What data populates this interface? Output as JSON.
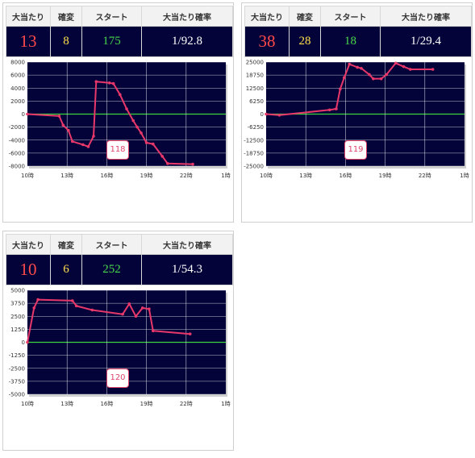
{
  "headers": {
    "big": "大当たり",
    "kakuhen": "確変",
    "start": "スタート",
    "prob": "大当たり確率"
  },
  "colors": {
    "plot_bg": "#03033a",
    "line": "#e8386a",
    "zero_line": "#3bd23b",
    "grid": "#ffffff",
    "big": "#ff4a4a",
    "kakuhen": "#ffe04a",
    "start": "#49d84a"
  },
  "cards": [
    {
      "machine": "118",
      "stats": {
        "big": "13",
        "kakuhen": "8",
        "start": "175",
        "prob": "1/92.8"
      }
    },
    {
      "machine": "119",
      "stats": {
        "big": "38",
        "kakuhen": "28",
        "start": "18",
        "prob": "1/29.4"
      }
    },
    {
      "machine": "120",
      "stats": {
        "big": "10",
        "kakuhen": "6",
        "start": "252",
        "prob": "1/54.3"
      }
    }
  ],
  "chart_data": [
    {
      "type": "line",
      "x_tick_labels": [
        "10時",
        "13時",
        "16時",
        "19時",
        "22時",
        "1時"
      ],
      "x_range_hours": [
        10,
        25
      ],
      "y_ticks": [
        8000,
        6000,
        4000,
        2000,
        0,
        -2000,
        -4000,
        -6000,
        -8000
      ],
      "ylim": [
        -8000,
        8000
      ],
      "grid": true,
      "series": [
        {
          "points": [
            [
              10.0,
              0
            ],
            [
              12.4,
              -300
            ],
            [
              12.7,
              -1700
            ],
            [
              13.1,
              -2500
            ],
            [
              13.4,
              -4200
            ],
            [
              14.2,
              -4700
            ],
            [
              14.6,
              -5000
            ],
            [
              15.0,
              -3400
            ],
            [
              15.2,
              5000
            ],
            [
              16.2,
              4800
            ],
            [
              16.5,
              4700
            ],
            [
              17.0,
              3000
            ],
            [
              17.5,
              800
            ],
            [
              18.0,
              -1000
            ],
            [
              18.3,
              -2000
            ],
            [
              18.6,
              -2900
            ],
            [
              19.0,
              -4400
            ],
            [
              19.5,
              -4600
            ],
            [
              20.2,
              -6500
            ],
            [
              20.6,
              -7600
            ],
            [
              22.5,
              -7700
            ]
          ]
        }
      ]
    },
    {
      "type": "line",
      "x_tick_labels": [
        "10時",
        "13時",
        "16時",
        "19時",
        "22時",
        "1時"
      ],
      "x_range_hours": [
        10,
        25
      ],
      "y_ticks": [
        25000,
        18750,
        12500,
        6250,
        0,
        -6250,
        -12500,
        -18750,
        -25000
      ],
      "ylim": [
        -25000,
        25000
      ],
      "grid": true,
      "series": [
        {
          "points": [
            [
              10.0,
              0
            ],
            [
              11.0,
              -500
            ],
            [
              14.8,
              2000
            ],
            [
              15.3,
              2500
            ],
            [
              15.6,
              12000
            ],
            [
              15.9,
              17500
            ],
            [
              16.3,
              24000
            ],
            [
              16.9,
              22500
            ],
            [
              17.2,
              22000
            ],
            [
              17.8,
              19000
            ],
            [
              18.1,
              17000
            ],
            [
              18.7,
              17000
            ],
            [
              19.1,
              19000
            ],
            [
              19.8,
              24500
            ],
            [
              20.4,
              22800
            ],
            [
              20.9,
              21500
            ],
            [
              22.6,
              21500
            ]
          ]
        }
      ]
    },
    {
      "type": "line",
      "x_tick_labels": [
        "10時",
        "13時",
        "16時",
        "19時",
        "22時",
        "1時"
      ],
      "x_range_hours": [
        10,
        25
      ],
      "y_ticks": [
        5000,
        3750,
        2500,
        1250,
        0,
        -1250,
        -2500,
        -3750,
        -5000
      ],
      "ylim": [
        -5000,
        5000
      ],
      "grid": true,
      "series": [
        {
          "points": [
            [
              10.0,
              0
            ],
            [
              10.5,
              3300
            ],
            [
              10.8,
              4100
            ],
            [
              13.4,
              4000
            ],
            [
              13.7,
              3500
            ],
            [
              14.9,
              3100
            ],
            [
              17.2,
              2700
            ],
            [
              17.7,
              3700
            ],
            [
              18.2,
              2500
            ],
            [
              18.7,
              3300
            ],
            [
              19.2,
              3200
            ],
            [
              19.5,
              1100
            ],
            [
              22.3,
              800
            ]
          ]
        }
      ]
    }
  ]
}
